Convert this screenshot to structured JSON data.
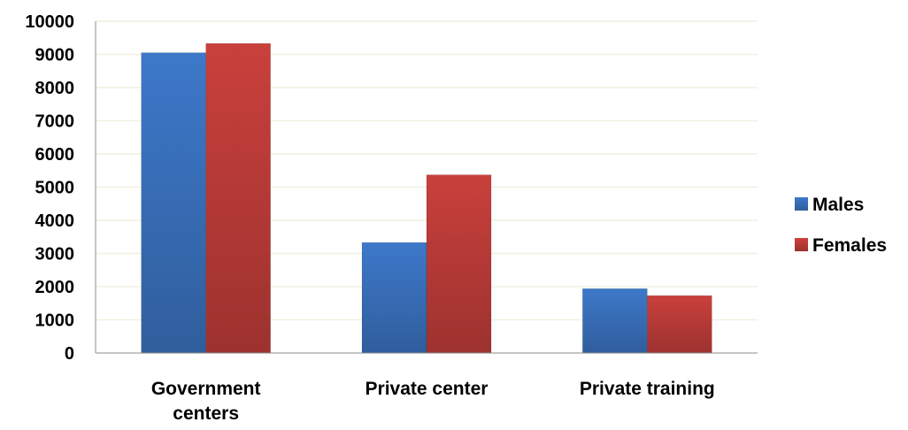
{
  "chart_data": {
    "type": "bar",
    "title": "",
    "xlabel": "",
    "ylabel": "",
    "categories": [
      [
        "Government",
        "centers"
      ],
      [
        "Private center"
      ],
      [
        "Private training"
      ]
    ],
    "series": [
      {
        "name": "Males",
        "values": [
          9050,
          3330,
          1940
        ],
        "color": "#3d78c9"
      },
      {
        "name": "Females",
        "values": [
          9330,
          5370,
          1730
        ],
        "color": "#c9403c"
      }
    ],
    "ylim": [
      0,
      10000
    ],
    "yticks": [
      0,
      1000,
      2000,
      3000,
      4000,
      5000,
      6000,
      7000,
      8000,
      9000,
      10000
    ],
    "grid": true,
    "grid_color": "#f2efe0",
    "legend_position": "right"
  }
}
